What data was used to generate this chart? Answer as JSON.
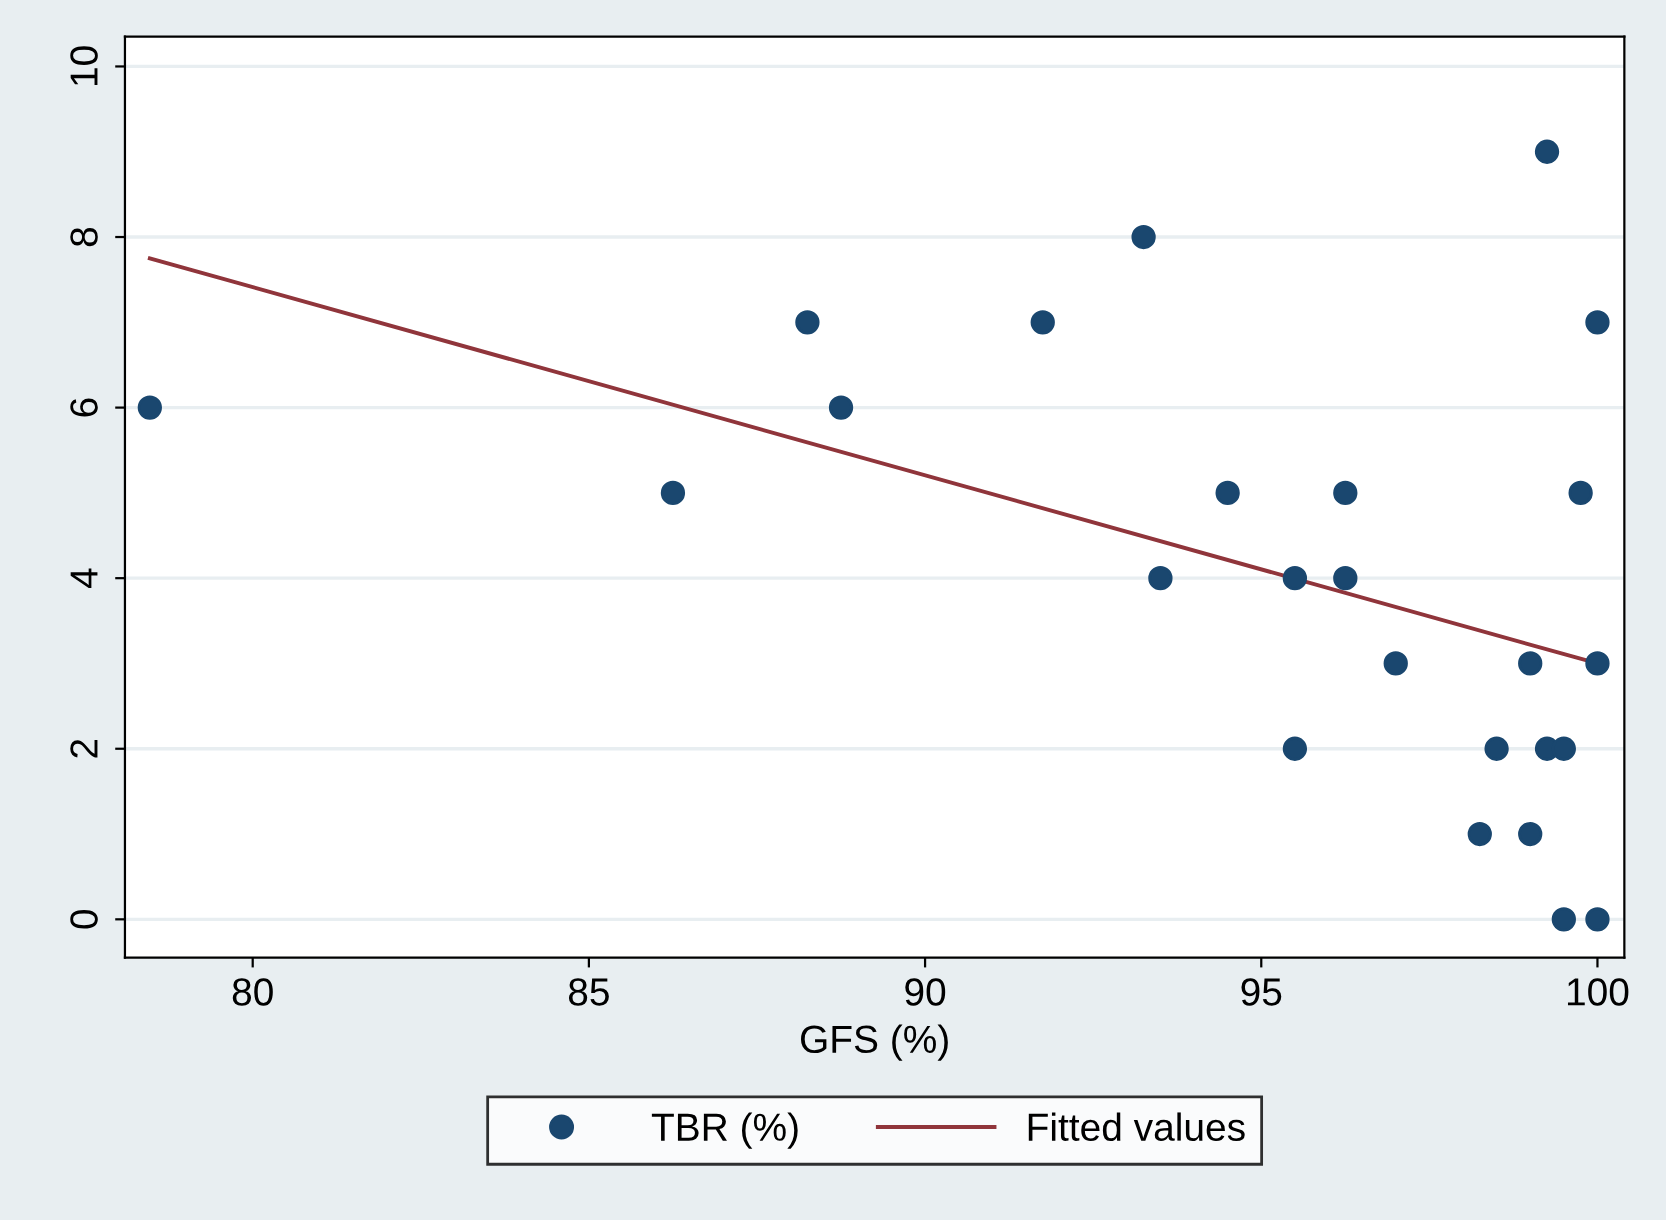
{
  "chart_data": {
    "type": "scatter",
    "xlabel": "GFS (%)",
    "xlim": [
      78.1,
      100.4
    ],
    "ylim": [
      -0.45,
      10.35
    ],
    "xticks": [
      80,
      85,
      90,
      95,
      100
    ],
    "yticks": [
      0,
      2,
      4,
      6,
      8,
      10
    ],
    "grid": "y",
    "legend": "bottom",
    "series": [
      {
        "name": "TBR (%)",
        "marker": "circle",
        "color": "#1a476f",
        "x": [
          78.47,
          86.25,
          88.25,
          88.75,
          91.75,
          93.25,
          93.5,
          94.5,
          95.5,
          95.5,
          96.25,
          96.25,
          97,
          98.25,
          98.5,
          99,
          99,
          99.25,
          99.25,
          99.5,
          99.5,
          99.75,
          100,
          100,
          100
        ],
        "values": [
          6,
          5,
          7,
          6,
          7,
          8,
          4,
          5,
          4,
          2,
          5,
          4,
          3,
          1,
          2,
          3,
          1,
          9,
          2,
          2,
          0,
          5,
          7,
          3,
          0
        ]
      },
      {
        "name": "Fitted values",
        "type": "line",
        "marker": "none",
        "color": "#90353b",
        "x": [
          78.47,
          100
        ],
        "values": [
          7.75,
          3.0
        ]
      }
    ]
  }
}
